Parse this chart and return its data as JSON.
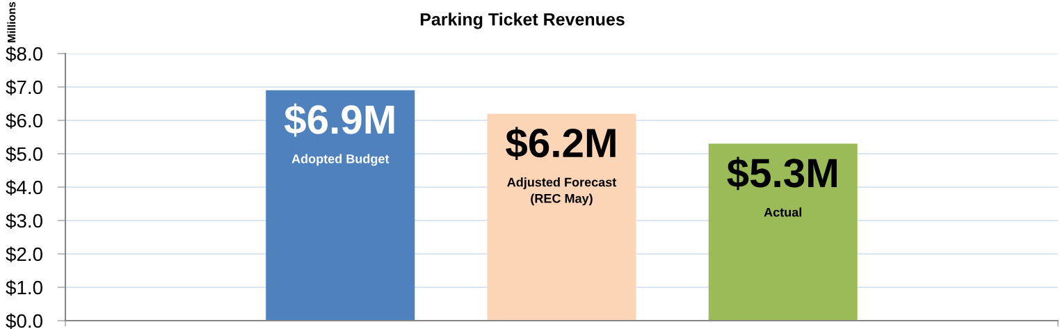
{
  "chart_data": {
    "type": "bar",
    "title": "Parking Ticket Revenues",
    "ylabel": "Millions",
    "categories": [
      null
    ],
    "series": [
      {
        "name": "Adopted Budget",
        "color": "#4f81bd",
        "values": [
          6.9
        ],
        "value_labels": [
          "$6.9M"
        ]
      },
      {
        "name": "Adjusted Forecast\n(REC May)",
        "color": "#fbd5b5",
        "values": [
          6.2
        ],
        "value_labels": [
          "$6.2M"
        ]
      },
      {
        "name": "Actual",
        "color": "#9bbb59",
        "values": [
          5.3
        ],
        "value_labels": [
          "$5.3M"
        ]
      }
    ],
    "ylim": [
      0,
      8
    ],
    "yticks": [
      {
        "value": 0,
        "label": "$0.0"
      },
      {
        "value": 1,
        "label": "$1.0"
      },
      {
        "value": 2,
        "label": "$2.0"
      },
      {
        "value": 3,
        "label": "$3.0"
      },
      {
        "value": 4,
        "label": "$4.0"
      },
      {
        "value": 5,
        "label": "$5.0"
      },
      {
        "value": 6,
        "label": "$6.0"
      },
      {
        "value": 7,
        "label": "$7.0"
      },
      {
        "value": 8,
        "label": "$8.0"
      }
    ],
    "grid": "y",
    "legend": false
  }
}
